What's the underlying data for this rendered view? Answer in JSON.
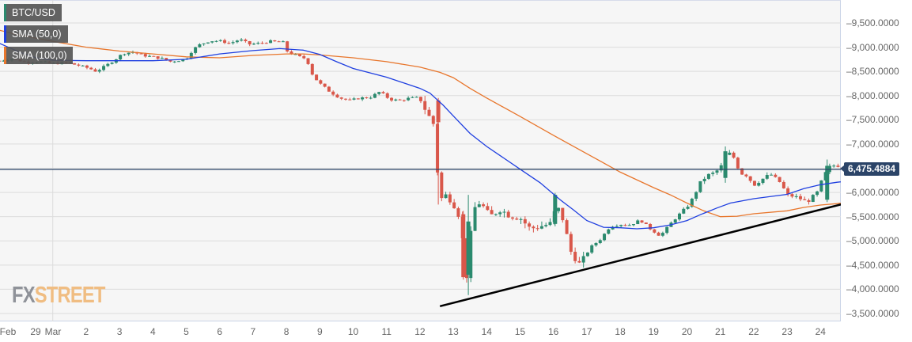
{
  "chart_data": {
    "type": "candlestick",
    "title": "BTC/USD",
    "symbol": "BTC/USD",
    "indicators": [
      {
        "name": "SMA (50,0)",
        "color": "#1f3fe0"
      },
      {
        "name": "SMA (100,0)",
        "color": "#e8762c"
      }
    ],
    "current_price": 6475.4884,
    "current_price_label": "6,475.4884",
    "ylim": [
      3300,
      9900
    ],
    "y_ticks": [
      9500,
      9000,
      8500,
      8000,
      7500,
      7000,
      6000,
      5500,
      5000,
      4500,
      4000,
      3500
    ],
    "y_tick_labels": [
      "9,500.0000",
      "9,000.0000",
      "8,500.0000",
      "8,000.0000",
      "7,500.0000",
      "7,000.0000",
      "6,000.0000",
      "5,500.0000",
      "5,000.0000",
      "4,500.0000",
      "4,000.0000",
      "3,500.0000"
    ],
    "x_tick_labels": [
      "Feb",
      "29",
      "Mar",
      "2",
      "3",
      "4",
      "5",
      "6",
      "7",
      "8",
      "9",
      "10",
      "11",
      "12",
      "13",
      "14",
      "15",
      "16",
      "17",
      "18",
      "19",
      "20",
      "21",
      "22",
      "23",
      "24"
    ],
    "x_tick_days": [
      -1.5,
      -0.5,
      0,
      1,
      2,
      3,
      4,
      5,
      6,
      7,
      8,
      9,
      10,
      11,
      12,
      13,
      14,
      15,
      16,
      17,
      18,
      19,
      20,
      21,
      22,
      23
    ],
    "legend_position": "top-left",
    "grid": true,
    "trendline": {
      "from": {
        "day": 11.6,
        "price": 3650
      },
      "to": {
        "day": 24.8,
        "price": 5960
      },
      "color": "#000000"
    },
    "price_path": [
      [
        -1.6,
        8720
      ],
      [
        -1.2,
        8760
      ],
      [
        -0.8,
        8690
      ],
      [
        -0.4,
        8700
      ],
      [
        0,
        8660
      ],
      [
        0.4,
        8680
      ],
      [
        0.8,
        8620
      ],
      [
        1.1,
        8560
      ],
      [
        1.3,
        8500
      ],
      [
        1.6,
        8620
      ],
      [
        1.9,
        8760
      ],
      [
        2.1,
        8870
      ],
      [
        2.4,
        8900
      ],
      [
        2.7,
        8830
      ],
      [
        3.0,
        8800
      ],
      [
        3.3,
        8760
      ],
      [
        3.5,
        8700
      ],
      [
        3.8,
        8730
      ],
      [
        4.0,
        8760
      ],
      [
        4.2,
        8950
      ],
      [
        4.4,
        9050
      ],
      [
        4.7,
        9130
      ],
      [
        5.0,
        9130
      ],
      [
        5.3,
        9080
      ],
      [
        5.6,
        9160
      ],
      [
        5.9,
        9060
      ],
      [
        6.2,
        9080
      ],
      [
        6.5,
        9120
      ],
      [
        6.9,
        9100
      ],
      [
        7.05,
        8880
      ],
      [
        7.2,
        8860
      ],
      [
        7.4,
        8800
      ],
      [
        7.6,
        8760
      ],
      [
        7.8,
        8400
      ],
      [
        8.0,
        8250
      ],
      [
        8.3,
        8080
      ],
      [
        8.6,
        7950
      ],
      [
        8.9,
        7900
      ],
      [
        9.2,
        7950
      ],
      [
        9.5,
        7960
      ],
      [
        9.8,
        8080
      ],
      [
        10.1,
        7920
      ],
      [
        10.4,
        7900
      ],
      [
        10.7,
        7950
      ],
      [
        11.0,
        7960
      ],
      [
        11.2,
        7650
      ],
      [
        11.4,
        7420
      ],
      [
        11.6,
        5850
      ],
      [
        11.8,
        5950
      ],
      [
        12.0,
        5780
      ],
      [
        12.2,
        5480
      ],
      [
        12.4,
        4280
      ],
      [
        12.6,
        5650
      ],
      [
        12.8,
        5800
      ],
      [
        13.1,
        5500
      ],
      [
        13.4,
        5650
      ],
      [
        13.7,
        5520
      ],
      [
        14.0,
        5480
      ],
      [
        14.3,
        5250
      ],
      [
        14.6,
        5300
      ],
      [
        14.9,
        5350
      ],
      [
        15.1,
        5720
      ],
      [
        15.3,
        5420
      ],
      [
        15.5,
        4800
      ],
      [
        15.8,
        4500
      ],
      [
        16.1,
        4860
      ],
      [
        16.4,
        5030
      ],
      [
        16.7,
        5300
      ],
      [
        17.0,
        5340
      ],
      [
        17.3,
        5330
      ],
      [
        17.6,
        5430
      ],
      [
        17.9,
        5250
      ],
      [
        18.2,
        5100
      ],
      [
        18.5,
        5350
      ],
      [
        18.8,
        5570
      ],
      [
        19.1,
        5780
      ],
      [
        19.4,
        6200
      ],
      [
        19.6,
        6350
      ],
      [
        19.8,
        6400
      ],
      [
        20.0,
        6500
      ],
      [
        20.2,
        6850
      ],
      [
        20.4,
        6720
      ],
      [
        20.6,
        6400
      ],
      [
        20.8,
        6350
      ],
      [
        21.0,
        6150
      ],
      [
        21.2,
        6250
      ],
      [
        21.5,
        6380
      ],
      [
        21.8,
        6200
      ],
      [
        22.0,
        5950
      ],
      [
        22.3,
        5900
      ],
      [
        22.6,
        5800
      ],
      [
        22.9,
        6000
      ],
      [
        23.1,
        6350
      ],
      [
        23.3,
        6550
      ],
      [
        23.5,
        6560
      ],
      [
        23.7,
        6520
      ],
      [
        23.9,
        6470
      ]
    ],
    "sma50": [
      [
        -1.6,
        9080
      ],
      [
        -1.0,
        8900
      ],
      [
        -0.5,
        8780
      ],
      [
        0,
        8730
      ],
      [
        1,
        8720
      ],
      [
        2,
        8720
      ],
      [
        3,
        8720
      ],
      [
        4,
        8750
      ],
      [
        5,
        8860
      ],
      [
        6,
        8930
      ],
      [
        6.8,
        8970
      ],
      [
        7.5,
        8940
      ],
      [
        8.0,
        8850
      ],
      [
        8.5,
        8700
      ],
      [
        9,
        8560
      ],
      [
        10,
        8380
      ],
      [
        11,
        8150
      ],
      [
        11.3,
        8050
      ],
      [
        11.7,
        7800
      ],
      [
        12,
        7580
      ],
      [
        12.5,
        7220
      ],
      [
        13,
        6950
      ],
      [
        14,
        6480
      ],
      [
        14.6,
        6200
      ],
      [
        15.2,
        5850
      ],
      [
        15.6,
        5640
      ],
      [
        16,
        5420
      ],
      [
        16.5,
        5280
      ],
      [
        17,
        5270
      ],
      [
        17.5,
        5250
      ],
      [
        18,
        5270
      ],
      [
        18.5,
        5330
      ],
      [
        19,
        5420
      ],
      [
        19.4,
        5540
      ],
      [
        19.9,
        5680
      ],
      [
        20.3,
        5780
      ],
      [
        21,
        5870
      ],
      [
        22,
        5960
      ],
      [
        22.5,
        6080
      ],
      [
        23,
        6160
      ],
      [
        23.5,
        6210
      ],
      [
        24,
        6250
      ]
    ],
    "sma100": [
      [
        -1.6,
        9350
      ],
      [
        -1,
        9250
      ],
      [
        0,
        9120
      ],
      [
        1,
        9000
      ],
      [
        2,
        8920
      ],
      [
        3,
        8860
      ],
      [
        4,
        8800
      ],
      [
        5,
        8780
      ],
      [
        6,
        8830
      ],
      [
        7,
        8860
      ],
      [
        7.5,
        8860
      ],
      [
        8,
        8840
      ],
      [
        9,
        8780
      ],
      [
        10,
        8700
      ],
      [
        11,
        8590
      ],
      [
        11.6,
        8480
      ],
      [
        12,
        8370
      ],
      [
        12.5,
        8150
      ],
      [
        13,
        7950
      ],
      [
        14,
        7570
      ],
      [
        15,
        7180
      ],
      [
        16,
        6800
      ],
      [
        17,
        6420
      ],
      [
        18,
        6100
      ],
      [
        18.5,
        5950
      ],
      [
        19,
        5780
      ],
      [
        19.5,
        5620
      ],
      [
        20,
        5500
      ],
      [
        20.5,
        5510
      ],
      [
        21,
        5560
      ],
      [
        22,
        5620
      ],
      [
        22.5,
        5690
      ],
      [
        23,
        5740
      ],
      [
        23.5,
        5770
      ],
      [
        24,
        5820
      ]
    ],
    "colors": {
      "up": "#2b8a6e",
      "down": "#d9574a",
      "price_line": "#2b4468",
      "grid": "#dcdcdc",
      "background": "#f6f6f6"
    }
  },
  "legend": {
    "title": "BTC/USD",
    "sma50": "SMA (50,0)",
    "sma100": "SMA (100,0)"
  },
  "watermark": {
    "fx": "FX",
    "street": "STREET"
  }
}
